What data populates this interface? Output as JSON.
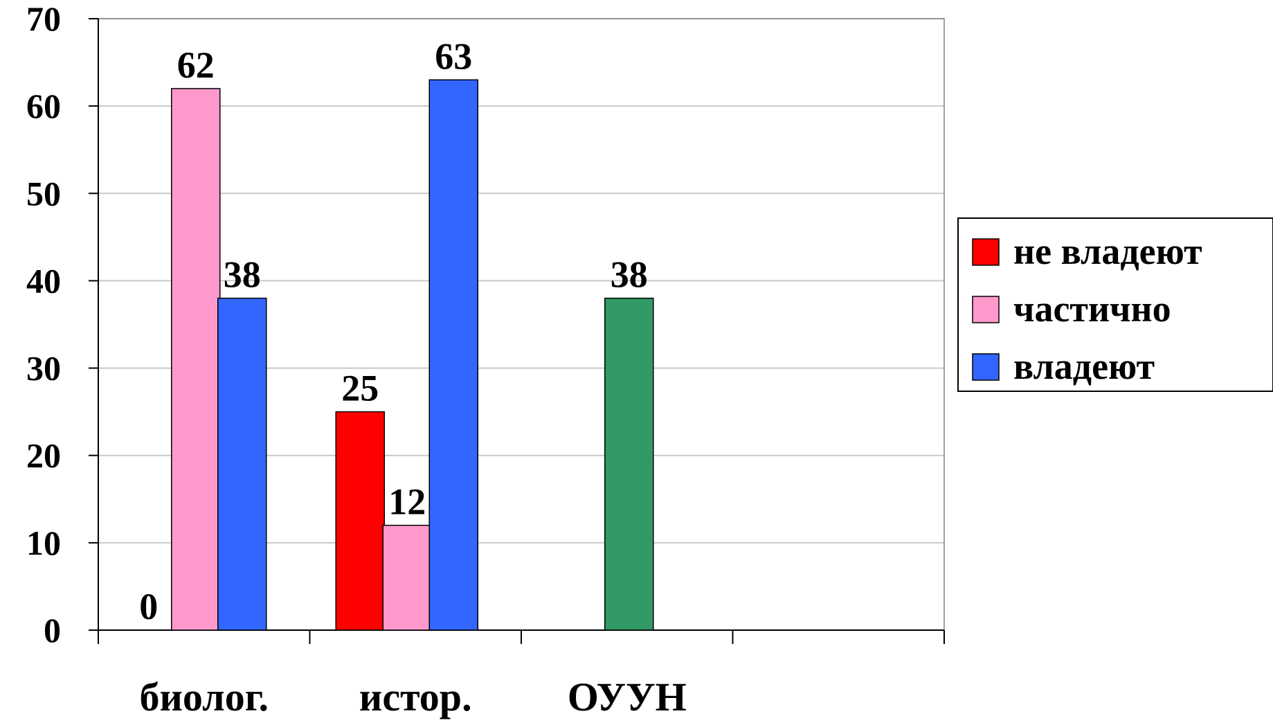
{
  "chart_data": {
    "type": "bar",
    "title": "",
    "xlabel": "",
    "ylabel": "",
    "ylim": [
      0,
      70
    ],
    "yticks": [
      0,
      10,
      20,
      30,
      40,
      50,
      60,
      70
    ],
    "grid": true,
    "legend_position": "right",
    "categories": [
      "биолог.",
      "истор.",
      "ОУУН",
      ""
    ],
    "series": [
      {
        "name": "не владеют",
        "color": "#ff0000",
        "values": [
          0,
          25,
          null,
          null
        ]
      },
      {
        "name": "частично",
        "color": "#ff99cc",
        "values": [
          62,
          12,
          null,
          null
        ]
      },
      {
        "name": "владеют",
        "color": "#3366ff",
        "values": [
          38,
          63,
          null,
          null
        ]
      },
      {
        "name": "",
        "color": "#339966",
        "values": [
          null,
          null,
          38,
          null
        ]
      }
    ]
  }
}
